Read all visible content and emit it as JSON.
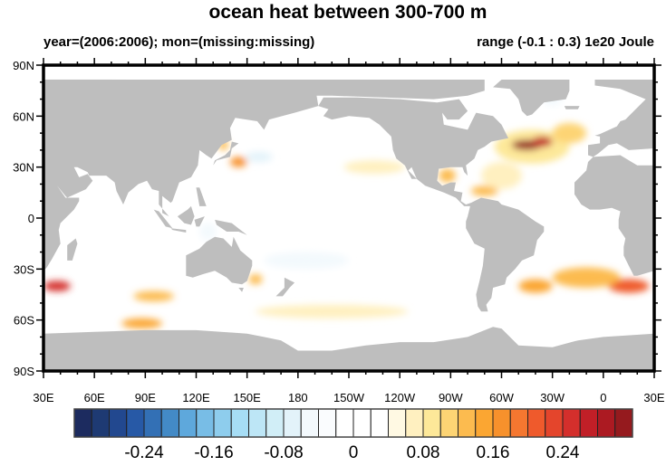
{
  "chart_data": {
    "type": "heatmap",
    "title": "ocean heat between 300-700 m",
    "left_subtitle": "year=(2006:2006); mon=(missing:missing)",
    "right_subtitle": "range (-0.1 : 0.3) 1e20 Joule",
    "x_ticks": [
      "30E",
      "60E",
      "90E",
      "120E",
      "150E",
      "180",
      "150W",
      "120W",
      "90W",
      "60W",
      "30W",
      "0",
      "30E"
    ],
    "y_ticks": [
      "90N",
      "60N",
      "30N",
      "0",
      "30S",
      "60S",
      "90S"
    ],
    "xlim": [
      30,
      390
    ],
    "ylim": [
      -90,
      90
    ],
    "colorbar": {
      "min": -0.32,
      "max": 0.32,
      "step": 0.02,
      "labels": [
        "-0.24",
        "-0.16",
        "-0.08",
        "0",
        "0.08",
        "0.16",
        "0.24"
      ],
      "label_values": [
        -0.24,
        -0.16,
        -0.08,
        0,
        0.08,
        0.16,
        0.24
      ],
      "colors": [
        "#1c2b5f",
        "#1e3a73",
        "#22488f",
        "#2759a6",
        "#3370b5",
        "#438ac6",
        "#5ea8dc",
        "#78bde6",
        "#8ecded",
        "#a6ddf5",
        "#bde6f6",
        "#d1eef7",
        "#e3f3fa",
        "#f3f9fd",
        "#fafcfe",
        "#ffffff",
        "#ffffff",
        "#ffffff",
        "#fff9e3",
        "#fff0c0",
        "#fde899",
        "#fdd474",
        "#fcbb4f",
        "#fba632",
        "#f7912c",
        "#f57730",
        "#ef5a2c",
        "#e4452c",
        "#d42f2c",
        "#c11f27",
        "#ac1a22",
        "#951a1e"
      ]
    },
    "land_color": "#bebebe",
    "anomalies": [
      {
        "lon": 318,
        "lat": 42,
        "rlon": 22,
        "rlat": 10,
        "value": 0.08
      },
      {
        "lon": 340,
        "lat": 50,
        "rlon": 10,
        "rlat": 6,
        "value": 0.1
      },
      {
        "lon": 315,
        "lat": 43,
        "rlon": 9,
        "rlat": 3,
        "value": 0.3
      },
      {
        "lon": 324,
        "lat": 45,
        "rlon": 6,
        "rlat": 3,
        "value": 0.26
      },
      {
        "lon": 268,
        "lat": 25,
        "rlon": 5,
        "rlat": 4,
        "value": 0.13
      },
      {
        "lon": 290,
        "lat": 16,
        "rlon": 8,
        "rlat": 3,
        "value": 0.13
      },
      {
        "lon": 300,
        "lat": 25,
        "rlon": 12,
        "rlat": 8,
        "value": 0.07
      },
      {
        "lon": 375,
        "lat": -40,
        "rlon": 12,
        "rlat": 4,
        "value": 0.2
      },
      {
        "lon": 350,
        "lat": -35,
        "rlon": 20,
        "rlat": 6,
        "value": 0.12
      },
      {
        "lon": 320,
        "lat": -40,
        "rlon": 10,
        "rlat": 4,
        "value": 0.14
      },
      {
        "lon": 38,
        "lat": -40,
        "rlon": 8,
        "rlat": 3,
        "value": 0.24
      },
      {
        "lon": 95,
        "lat": -46,
        "rlon": 12,
        "rlat": 3,
        "value": 0.12
      },
      {
        "lon": 88,
        "lat": -62,
        "rlon": 12,
        "rlat": 3,
        "value": 0.15
      },
      {
        "lon": 145,
        "lat": 33,
        "rlon": 5,
        "rlat": 3,
        "value": 0.17
      },
      {
        "lon": 136,
        "lat": 43,
        "rlon": 3,
        "rlat": 3,
        "value": 0.12
      },
      {
        "lon": 157,
        "lat": 36,
        "rlon": 8,
        "rlat": 3,
        "value": -0.07
      },
      {
        "lon": 127,
        "lat": -8,
        "rlon": 5,
        "rlat": 5,
        "value": -0.06
      },
      {
        "lon": 185,
        "lat": -25,
        "rlon": 25,
        "rlat": 5,
        "value": -0.06
      },
      {
        "lon": 155,
        "lat": -36,
        "rlon": 4,
        "rlat": 3,
        "value": 0.13
      },
      {
        "lon": 225,
        "lat": 30,
        "rlon": 18,
        "rlat": 4,
        "value": 0.06
      },
      {
        "lon": 200,
        "lat": -55,
        "rlon": 45,
        "rlat": 4,
        "value": 0.06
      },
      {
        "lon": 330,
        "lat": 72,
        "rlon": 6,
        "rlat": 6,
        "value": -0.05
      }
    ]
  }
}
